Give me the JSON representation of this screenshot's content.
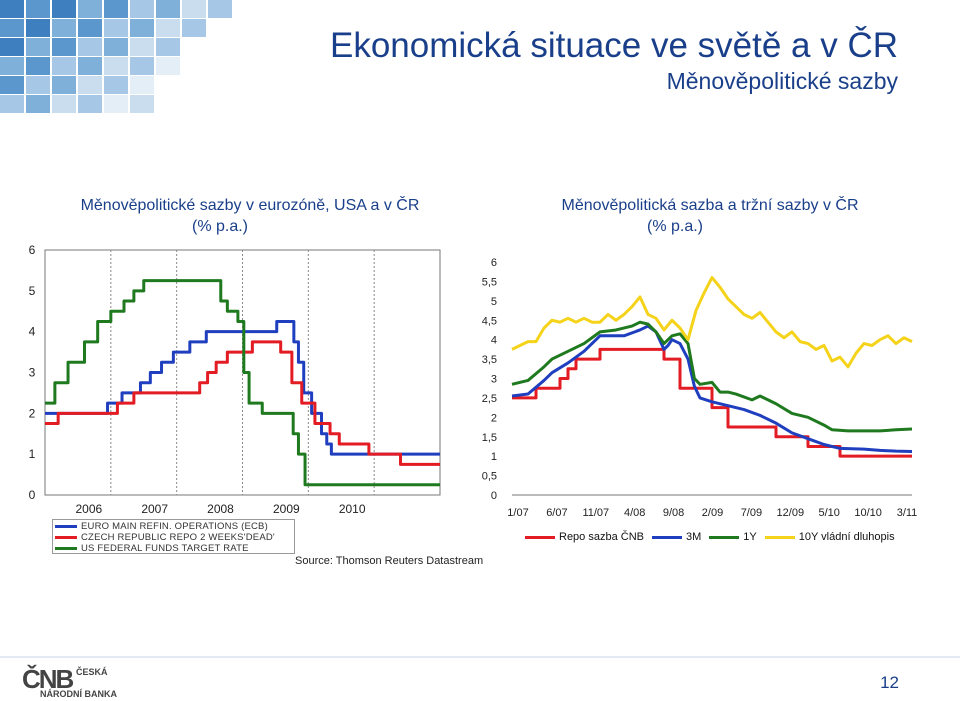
{
  "header": {
    "title": "Ekonomická situace ve světě a v ČR",
    "subtitle": "Měnověpolitické sazby"
  },
  "colors": {
    "title_blue": "#1a3f8a",
    "ecb_blue": "#1f3fbf",
    "cnb_red": "#e31b23",
    "fed_green": "#1f7a1f",
    "yellow": "#f5d31b"
  },
  "left_chart": {
    "title_line1": "Měnověpolitické sazby v eurozóně, USA a v ČR",
    "title_line2": "(% p.a.)",
    "legend": [
      "EURO MAIN REFIN. OPERATIONS (ECB)",
      "CZECH REPUBLIC REPO 2 WEEKS'DEAD'",
      "US FEDERAL FUNDS TARGET RATE"
    ],
    "source": "Source: Thomson Reuters Datastream"
  },
  "right_chart": {
    "title_line1": "Měnověpolitická sazba a tržní sazby v ČR",
    "title_line2": "(% p.a.)",
    "legend": [
      "Repo sazba ČNB",
      "3M",
      "1Y",
      "10Y vládní dluhopis"
    ]
  },
  "chart_data": [
    {
      "type": "line",
      "x_tick_labels": [
        "2006",
        "2007",
        "2008",
        "2009",
        "2010"
      ],
      "y_tick_labels": [
        "0",
        "1",
        "2",
        "3",
        "4",
        "5",
        "6"
      ],
      "ylim": [
        0,
        6
      ],
      "xlim": [
        2005.0,
        2011.0
      ],
      "legend_position": "bottom-left",
      "series": [
        {
          "name": "EURO MAIN REFIN. OPERATIONS (ECB)",
          "color": "#1f3fbf",
          "step": true,
          "points": [
            [
              2005.0,
              2.0
            ],
            [
              2005.95,
              2.25
            ],
            [
              2006.17,
              2.5
            ],
            [
              2006.45,
              2.75
            ],
            [
              2006.6,
              3.0
            ],
            [
              2006.77,
              3.25
            ],
            [
              2006.95,
              3.5
            ],
            [
              2007.2,
              3.75
            ],
            [
              2007.45,
              4.0
            ],
            [
              2008.52,
              4.25
            ],
            [
              2008.78,
              3.75
            ],
            [
              2008.85,
              3.25
            ],
            [
              2008.93,
              2.5
            ],
            [
              2009.05,
              2.0
            ],
            [
              2009.2,
              1.5
            ],
            [
              2009.28,
              1.25
            ],
            [
              2009.35,
              1.0
            ],
            [
              2011.0,
              1.0
            ]
          ]
        },
        {
          "name": "CZECH REPUBLIC REPO 2 WEEKS'DEAD'",
          "color": "#e31b23",
          "step": true,
          "points": [
            [
              2005.0,
              1.75
            ],
            [
              2005.2,
              2.0
            ],
            [
              2006.0,
              2.0
            ],
            [
              2006.1,
              2.25
            ],
            [
              2006.35,
              2.5
            ],
            [
              2007.35,
              2.75
            ],
            [
              2007.47,
              3.0
            ],
            [
              2007.6,
              3.25
            ],
            [
              2007.77,
              3.5
            ],
            [
              2008.15,
              3.75
            ],
            [
              2008.58,
              3.5
            ],
            [
              2008.75,
              2.75
            ],
            [
              2008.9,
              2.25
            ],
            [
              2009.1,
              1.75
            ],
            [
              2009.33,
              1.5
            ],
            [
              2009.47,
              1.25
            ],
            [
              2009.92,
              1.0
            ],
            [
              2010.4,
              0.75
            ],
            [
              2011.0,
              0.75
            ]
          ]
        },
        {
          "name": "US FEDERAL FUNDS TARGET RATE",
          "color": "#1f7a1f",
          "step": true,
          "points": [
            [
              2005.0,
              2.25
            ],
            [
              2005.15,
              2.75
            ],
            [
              2005.35,
              3.25
            ],
            [
              2005.6,
              3.75
            ],
            [
              2005.8,
              4.25
            ],
            [
              2006.0,
              4.5
            ],
            [
              2006.2,
              4.75
            ],
            [
              2006.35,
              5.0
            ],
            [
              2006.5,
              5.25
            ],
            [
              2007.67,
              4.75
            ],
            [
              2007.77,
              4.5
            ],
            [
              2007.93,
              4.25
            ],
            [
              2008.02,
              3.0
            ],
            [
              2008.1,
              2.25
            ],
            [
              2008.3,
              2.0
            ],
            [
              2008.77,
              1.5
            ],
            [
              2008.85,
              1.0
            ],
            [
              2008.95,
              0.25
            ],
            [
              2011.0,
              0.25
            ]
          ]
        }
      ]
    },
    {
      "type": "line",
      "x_tick_labels": [
        "1/07",
        "6/07",
        "11/07",
        "4/08",
        "9/08",
        "2/09",
        "7/09",
        "12/09",
        "5/10",
        "10/10",
        "3/11"
      ],
      "y_tick_labels": [
        "0",
        "0,5",
        "1",
        "1,5",
        "2",
        "2,5",
        "3",
        "3,5",
        "4",
        "4,5",
        "5",
        "5,5",
        "6"
      ],
      "ylim": [
        0,
        6
      ],
      "xlim": [
        0,
        50
      ],
      "legend_position": "bottom",
      "series": [
        {
          "name": "Repo sazba ČNB",
          "color": "#e31b23",
          "step": true,
          "points": [
            [
              0,
              2.5
            ],
            [
              3,
              2.75
            ],
            [
              6,
              3.0
            ],
            [
              7,
              3.25
            ],
            [
              8,
              3.5
            ],
            [
              11,
              3.75
            ],
            [
              19,
              3.5
            ],
            [
              21,
              2.75
            ],
            [
              25,
              2.25
            ],
            [
              27,
              1.75
            ],
            [
              33,
              1.5
            ],
            [
              37,
              1.25
            ],
            [
              41,
              1.0
            ],
            [
              50,
              1.0
            ]
          ]
        },
        {
          "name": "3M",
          "color": "#1f3fbf",
          "step": false,
          "points": [
            [
              0,
              2.55
            ],
            [
              2,
              2.6
            ],
            [
              4,
              2.95
            ],
            [
              5,
              3.15
            ],
            [
              7,
              3.4
            ],
            [
              9,
              3.7
            ],
            [
              11,
              4.1
            ],
            [
              12,
              4.1
            ],
            [
              14,
              4.1
            ],
            [
              16,
              4.25
            ],
            [
              17,
              4.35
            ],
            [
              18,
              4.2
            ],
            [
              19,
              3.75
            ],
            [
              19.5,
              3.85
            ],
            [
              20,
              4.0
            ],
            [
              21,
              3.9
            ],
            [
              22,
              3.5
            ],
            [
              22.8,
              2.8
            ],
            [
              23.5,
              2.5
            ],
            [
              25,
              2.4
            ],
            [
              27,
              2.3
            ],
            [
              29,
              2.2
            ],
            [
              31,
              2.05
            ],
            [
              33,
              1.85
            ],
            [
              35,
              1.6
            ],
            [
              37,
              1.45
            ],
            [
              39,
              1.3
            ],
            [
              41,
              1.2
            ],
            [
              44,
              1.18
            ],
            [
              46,
              1.15
            ],
            [
              48,
              1.13
            ],
            [
              50,
              1.12
            ]
          ]
        },
        {
          "name": "1Y",
          "color": "#1f7a1f",
          "step": false,
          "points": [
            [
              0,
              2.85
            ],
            [
              2,
              2.95
            ],
            [
              4,
              3.3
            ],
            [
              5,
              3.5
            ],
            [
              7,
              3.7
            ],
            [
              9,
              3.9
            ],
            [
              11,
              4.2
            ],
            [
              13,
              4.25
            ],
            [
              15,
              4.35
            ],
            [
              16,
              4.45
            ],
            [
              17,
              4.4
            ],
            [
              18,
              4.2
            ],
            [
              19,
              3.9
            ],
            [
              20,
              4.1
            ],
            [
              21,
              4.15
            ],
            [
              22,
              3.9
            ],
            [
              22.8,
              3.0
            ],
            [
              23.5,
              2.85
            ],
            [
              25,
              2.9
            ],
            [
              26,
              2.65
            ],
            [
              27,
              2.65
            ],
            [
              28,
              2.6
            ],
            [
              30,
              2.45
            ],
            [
              31,
              2.55
            ],
            [
              33,
              2.35
            ],
            [
              35,
              2.1
            ],
            [
              37,
              2.0
            ],
            [
              39,
              1.8
            ],
            [
              40,
              1.68
            ],
            [
              42,
              1.65
            ],
            [
              44,
              1.65
            ],
            [
              46,
              1.65
            ],
            [
              48,
              1.68
            ],
            [
              50,
              1.7
            ]
          ]
        },
        {
          "name": "10Y vládní dluhopis",
          "color": "#f5d31b",
          "step": false,
          "points": [
            [
              0,
              3.75
            ],
            [
              1,
              3.85
            ],
            [
              2,
              3.95
            ],
            [
              3,
              3.95
            ],
            [
              4,
              4.3
            ],
            [
              5,
              4.5
            ],
            [
              6,
              4.45
            ],
            [
              7,
              4.55
            ],
            [
              8,
              4.45
            ],
            [
              9,
              4.55
            ],
            [
              10,
              4.45
            ],
            [
              11,
              4.45
            ],
            [
              12,
              4.65
            ],
            [
              13,
              4.5
            ],
            [
              14,
              4.65
            ],
            [
              15,
              4.85
            ],
            [
              16,
              5.1
            ],
            [
              17,
              4.65
            ],
            [
              18,
              4.55
            ],
            [
              19,
              4.25
            ],
            [
              20,
              4.5
            ],
            [
              21,
              4.3
            ],
            [
              22,
              4.0
            ],
            [
              23,
              4.75
            ],
            [
              24,
              5.2
            ],
            [
              25,
              5.6
            ],
            [
              26,
              5.35
            ],
            [
              27,
              5.05
            ],
            [
              28,
              4.85
            ],
            [
              29,
              4.65
            ],
            [
              30,
              4.55
            ],
            [
              31,
              4.7
            ],
            [
              32,
              4.45
            ],
            [
              33,
              4.2
            ],
            [
              34,
              4.05
            ],
            [
              35,
              4.2
            ],
            [
              36,
              3.95
            ],
            [
              37,
              3.9
            ],
            [
              38,
              3.75
            ],
            [
              39,
              3.85
            ],
            [
              40,
              3.45
            ],
            [
              41,
              3.55
            ],
            [
              42,
              3.3
            ],
            [
              43,
              3.65
            ],
            [
              44,
              3.9
            ],
            [
              45,
              3.85
            ],
            [
              46,
              4.0
            ],
            [
              47,
              4.1
            ],
            [
              48,
              3.9
            ],
            [
              49,
              4.05
            ],
            [
              50,
              3.95
            ]
          ]
        }
      ]
    }
  ],
  "footer": {
    "logo_mark": "ČNB",
    "logo_line1": "ČESKÁ",
    "logo_line2": "NÁRODNÍ BANKA",
    "page_number": "12"
  }
}
